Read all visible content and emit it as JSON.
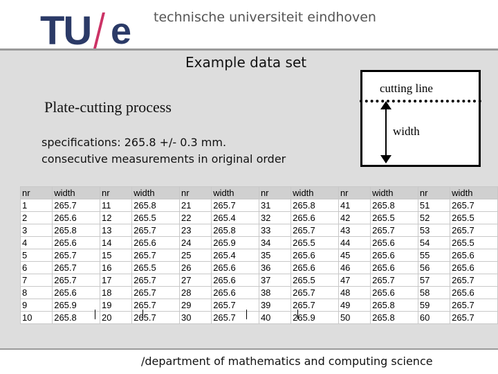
{
  "header": {
    "logo_tu": "TU",
    "logo_e": "e",
    "university": "technische universiteit eindhoven"
  },
  "slide": {
    "title": "Example data set",
    "subtitle": "Plate-cutting process",
    "spec_line1": "specifications: 265.8 +/- 0.3 mm.",
    "spec_line2": "consecutive measurements in original order"
  },
  "diagram": {
    "cut_label": "cutting line",
    "width_label": "width"
  },
  "table": {
    "headers": [
      "nr",
      "width",
      "nr",
      "width",
      "nr",
      "width",
      "nr",
      "width",
      "nr",
      "width",
      "nr",
      "width"
    ],
    "rows": [
      [
        "1",
        "265.7",
        "11",
        "265.8",
        "21",
        "265.7",
        "31",
        "265.8",
        "41",
        "265.8",
        "51",
        "265.7"
      ],
      [
        "2",
        "265.6",
        "12",
        "265.5",
        "22",
        "265.4",
        "32",
        "265.6",
        "42",
        "265.5",
        "52",
        "265.5"
      ],
      [
        "3",
        "265.8",
        "13",
        "265.7",
        "23",
        "265.8",
        "33",
        "265.7",
        "43",
        "265.7",
        "53",
        "265.7"
      ],
      [
        "4",
        "265.6",
        "14",
        "265.6",
        "24",
        "265.9",
        "34",
        "265.5",
        "44",
        "265.6",
        "54",
        "265.5"
      ],
      [
        "5",
        "265.7",
        "15",
        "265.7",
        "25",
        "265.4",
        "35",
        "265.6",
        "45",
        "265.6",
        "55",
        "265.6"
      ],
      [
        "6",
        "265.7",
        "16",
        "265.5",
        "26",
        "265.6",
        "36",
        "265.6",
        "46",
        "265.6",
        "56",
        "265.6"
      ],
      [
        "7",
        "265.7",
        "17",
        "265.7",
        "27",
        "265.6",
        "37",
        "265.5",
        "47",
        "265.7",
        "57",
        "265.7"
      ],
      [
        "8",
        "265.6",
        "18",
        "265.7",
        "28",
        "265.6",
        "38",
        "265.7",
        "48",
        "265.6",
        "58",
        "265.6"
      ],
      [
        "9",
        "265.9",
        "19",
        "265.7",
        "29",
        "265.7",
        "39",
        "265.7",
        "49",
        "265.8",
        "59",
        "265.7"
      ],
      [
        "10",
        "265.8",
        "20",
        "265.7",
        "30",
        "265.7",
        "40",
        "265.9",
        "50",
        "265.8",
        "60",
        "265.7"
      ]
    ]
  },
  "footer": {
    "text": "/department of mathematics and computing science"
  },
  "colors": {
    "logo_blue": "#2b3a67",
    "logo_slash": "#cc3366",
    "slide_bg": "#dddddd"
  }
}
